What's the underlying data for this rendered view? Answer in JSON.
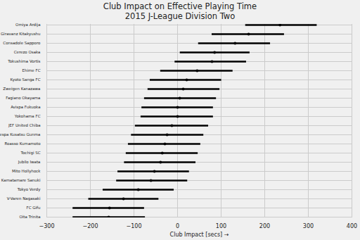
{
  "chart_data": {
    "type": "errorbar",
    "title": "Club Impact on Effective Playing Time",
    "subtitle": "2015 J-League Division Two",
    "orientation": "horizontal",
    "grid": true,
    "color": "#000000",
    "xlabel": "Club Impact [secs]",
    "categories": [
      "Omiya Ardija",
      "Giravanz Kitakyushu",
      "Consadole Sapporo",
      "Cerezo Osaka",
      "Tokushima Vortis",
      "Ehime FC",
      "Kyoto Sanga FC",
      "Zweigen Kanazawa",
      "Fagiano Okayama",
      "Avispa Fukuoka",
      "Yokohama FC",
      "JEF United Chiba",
      "Thespa Kusatsu Gunma",
      "Roasso Kumamoto",
      "Tochigi SC",
      "Jubilo Iwata",
      "Mito Hollyhock",
      "Kamatamare Sanuki",
      "Tokyo Verdy",
      "V-Varen Nagasaki",
      "FC Gifu",
      "Oita Trinita"
    ],
    "values": [
      235,
      163,
      132,
      85,
      79,
      45,
      21,
      13,
      5,
      0,
      0,
      -13,
      -24,
      -29,
      -35,
      -39,
      -53,
      -61,
      -90,
      -124,
      -156,
      -158
    ],
    "lower": [
      156,
      79,
      48,
      6,
      -6,
      -39,
      -63,
      -68,
      -76,
      -82,
      -84,
      -97,
      -106,
      -113,
      -118,
      -122,
      -137,
      -140,
      -171,
      -204,
      -240,
      -240
    ],
    "upper": [
      320,
      245,
      213,
      166,
      158,
      127,
      101,
      97,
      89,
      82,
      82,
      71,
      60,
      53,
      47,
      42,
      27,
      23,
      -8,
      -43,
      -76,
      -74
    ],
    "xlim": [
      -300,
      400
    ],
    "xticks": [
      -300,
      -200,
      -100,
      0,
      100,
      200,
      300,
      400
    ]
  }
}
